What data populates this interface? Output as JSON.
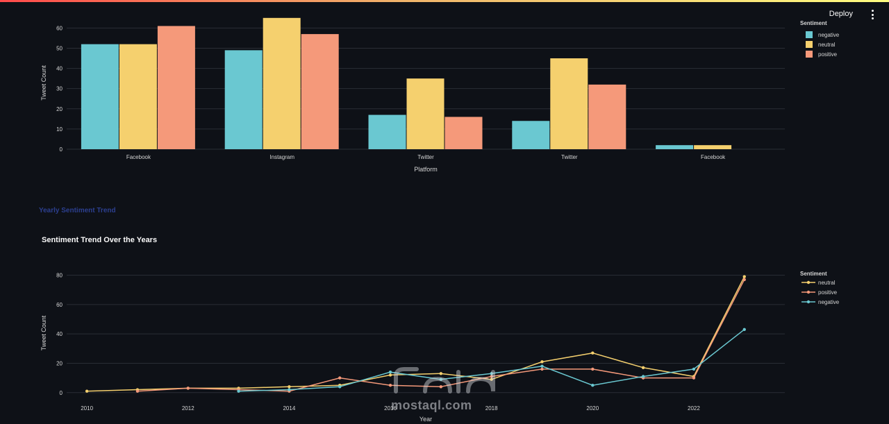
{
  "header": {
    "deploy_label": "Deploy"
  },
  "section_heading": "Yearly Sentiment Trend",
  "colors": {
    "negative": "#6ac8d1",
    "neutral": "#f5d06e",
    "positive": "#f5997a",
    "grid": "#2a2e36",
    "axis_text": "#d6d6d6"
  },
  "watermark": {
    "text": "mostaql.com"
  },
  "chart_data": [
    {
      "type": "bar",
      "title": "",
      "xlabel": "Platform",
      "ylabel": "Tweet Count",
      "ylim": [
        0,
        67
      ],
      "yticks": [
        0,
        10,
        20,
        30,
        40,
        50,
        60
      ],
      "categories": [
        "Facebook",
        "Instagram",
        "Twitter",
        "Twitter",
        "Facebook"
      ],
      "legend_title": "Sentiment",
      "legend_position": "top-right",
      "series": [
        {
          "name": "negative",
          "values": [
            52,
            49,
            17,
            14,
            2
          ]
        },
        {
          "name": "neutral",
          "values": [
            52,
            65,
            35,
            45,
            2
          ]
        },
        {
          "name": "positive",
          "values": [
            61,
            57,
            16,
            32,
            0
          ]
        }
      ]
    },
    {
      "type": "line",
      "title": "Sentiment Trend Over the Years",
      "xlabel": "Year",
      "ylabel": "Tweet Count",
      "xlim": [
        2009.6,
        2023.8
      ],
      "ylim": [
        -2,
        85
      ],
      "xticks": [
        2010,
        2012,
        2014,
        2016,
        2018,
        2020,
        2022
      ],
      "yticks": [
        0,
        20,
        40,
        60,
        80
      ],
      "legend_title": "Sentiment",
      "legend_position": "top-right",
      "series": [
        {
          "name": "neutral",
          "x": [
            2010,
            2011,
            2012,
            2013,
            2014,
            2015,
            2016,
            2017,
            2018,
            2019,
            2020,
            2021,
            2022,
            2023
          ],
          "y": [
            1,
            2,
            3,
            3,
            4,
            5,
            12,
            13,
            9,
            21,
            27,
            17,
            11,
            79
          ]
        },
        {
          "name": "positive",
          "x": [
            2011,
            2012,
            2013,
            2014,
            2015,
            2016,
            2017,
            2018,
            2019,
            2020,
            2021,
            2022,
            2023
          ],
          "y": [
            1,
            3,
            2,
            1,
            10,
            5,
            4,
            11,
            16,
            16,
            10,
            10,
            77
          ]
        },
        {
          "name": "negative",
          "x": [
            2013,
            2014,
            2015,
            2016,
            2017,
            2018,
            2019,
            2020,
            2021,
            2022,
            2023
          ],
          "y": [
            1,
            2,
            4,
            14,
            9,
            13,
            18,
            5,
            11,
            16,
            43
          ]
        }
      ]
    }
  ]
}
